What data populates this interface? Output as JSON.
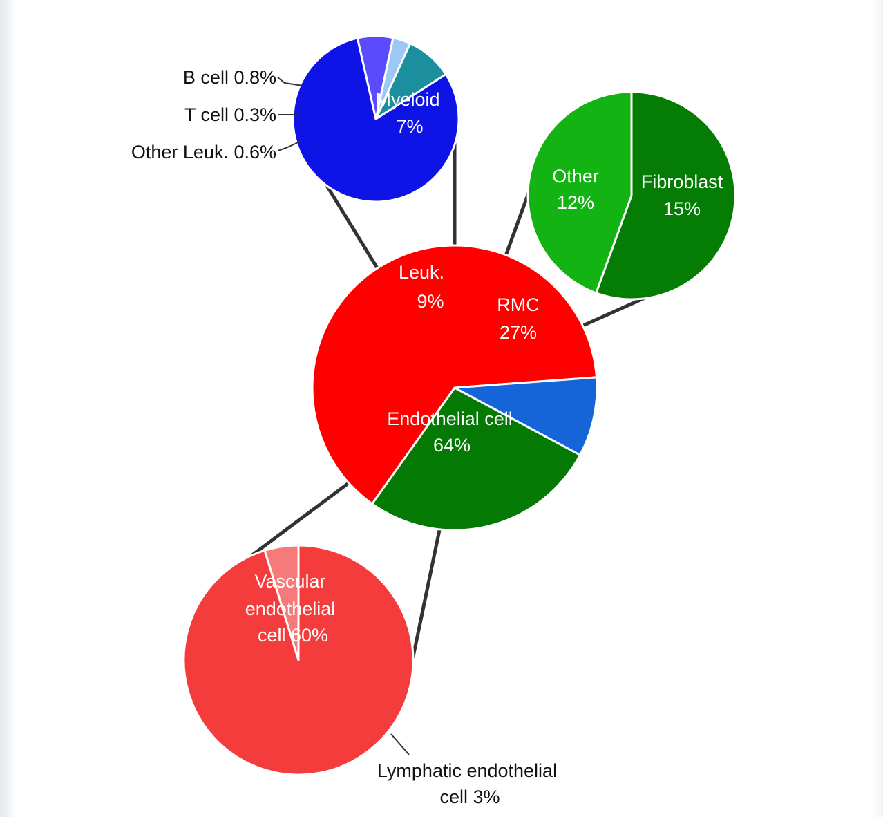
{
  "chart_data": [
    {
      "type": "pie",
      "id": "main",
      "slices": [
        {
          "label": "Endothelial cell",
          "value": 64,
          "text": [
            "Endothelial cell",
            "64%"
          ],
          "color": "#ff0000"
        },
        {
          "label": "Leuk.",
          "value": 9,
          "text": [
            "Leuk.",
            "9%"
          ],
          "color": "#1565d8"
        },
        {
          "label": "RMC",
          "value": 27,
          "text": [
            "RMC",
            "27%"
          ],
          "color": "#047a04"
        }
      ]
    },
    {
      "type": "pie",
      "id": "leukocyte-breakdown",
      "parent": "Leuk.",
      "slices": [
        {
          "label": "Myeloid",
          "value": 7,
          "text": [
            "Myeloid",
            "7%"
          ],
          "color": "#0f14e6"
        },
        {
          "label": "B cell",
          "value": 0.8,
          "text": [
            "B cell 0.8%"
          ],
          "color": "#1c8f9e"
        },
        {
          "label": "T cell",
          "value": 0.3,
          "text": [
            "T cell 0.3%"
          ],
          "color": "#9ec8f4"
        },
        {
          "label": "Other Leuk.",
          "value": 0.6,
          "text": [
            "Other Leuk. 0.6%"
          ],
          "color": "#5a4bff"
        }
      ]
    },
    {
      "type": "pie",
      "id": "rmc-breakdown",
      "parent": "RMC",
      "slices": [
        {
          "label": "Fibroblast",
          "value": 15,
          "text": [
            "Fibroblast",
            "15%"
          ],
          "color": "#057d05"
        },
        {
          "label": "Other",
          "value": 12,
          "text": [
            "Other",
            "12%"
          ],
          "color": "#13b313"
        }
      ]
    },
    {
      "type": "pie",
      "id": "endothelial-breakdown",
      "parent": "Endothelial cell",
      "slices": [
        {
          "label": "Vascular endothelial cell",
          "value": 60,
          "text": [
            "Vascular",
            "endothelial",
            "cell 60%"
          ],
          "color": "#f53c3c"
        },
        {
          "label": "Lymphatic endothelial cell",
          "value": 3,
          "text": [
            "Lymphatic endothelial",
            "cell 3%"
          ],
          "color": "#f77a7a"
        }
      ]
    }
  ]
}
